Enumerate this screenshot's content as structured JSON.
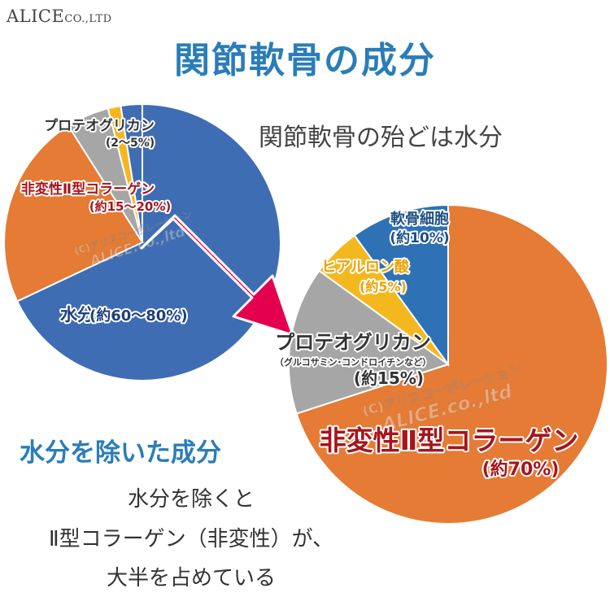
{
  "brand": {
    "name": "ALICE",
    "suffix": "CO.,LTD"
  },
  "title": "関節軟骨の成分",
  "subtitle": "関節軟骨の殆どは水分",
  "section_heading": "水分を除いた成分",
  "description": [
    "水分を除くと",
    "Ⅱ型コラーゲン（非変性）が、",
    "大半を占めている"
  ],
  "watermark": {
    "line1": "(C)アリスコーポレーション",
    "line2": "ALICE.co.,ltd"
  },
  "colors": {
    "blue": "#3f6db4",
    "orange": "#e57b34",
    "gray": "#a6a6a6",
    "yellow": "#f4b81f",
    "steelblue": "#2e72b5",
    "title": "#2a7db8",
    "arrow": "#e4004f",
    "darkred": "#a8141b"
  },
  "chart_data": [
    {
      "type": "pie",
      "title": "関節軟骨の殆どは水分",
      "slices": [
        {
          "label": "水分",
          "detail": "(約60〜80%)",
          "value": 68,
          "color": "#3f6db4"
        },
        {
          "label": "非変性Ⅱ型コラーゲン",
          "detail": "(約15〜20%)",
          "value": 23,
          "color": "#e57b34"
        },
        {
          "label": "プロテオグリカン",
          "detail": "(2〜5%)",
          "value": 5,
          "color": "#a6a6a6"
        },
        {
          "label": "",
          "detail": "",
          "value": 1.5,
          "color": "#f4b81f"
        },
        {
          "label": "",
          "detail": "",
          "value": 2.5,
          "color": "#3f6db4"
        }
      ]
    },
    {
      "type": "pie",
      "title": "水分を除いた成分",
      "slices": [
        {
          "label": "非変性Ⅱ型コラーゲン",
          "detail": "(約70%)",
          "value": 70,
          "color": "#e57b34"
        },
        {
          "label": "プロテオグリカン",
          "sublabel": "（グルコサミン･コンドロイチンなど）",
          "detail": "(約15%)",
          "value": 15,
          "color": "#a6a6a6"
        },
        {
          "label": "ヒアルロン酸",
          "detail": "(約5%)",
          "value": 5,
          "color": "#f4b81f"
        },
        {
          "label": "軟骨細胞",
          "detail": "(約10%)",
          "value": 10,
          "color": "#2e72b5"
        }
      ]
    }
  ]
}
